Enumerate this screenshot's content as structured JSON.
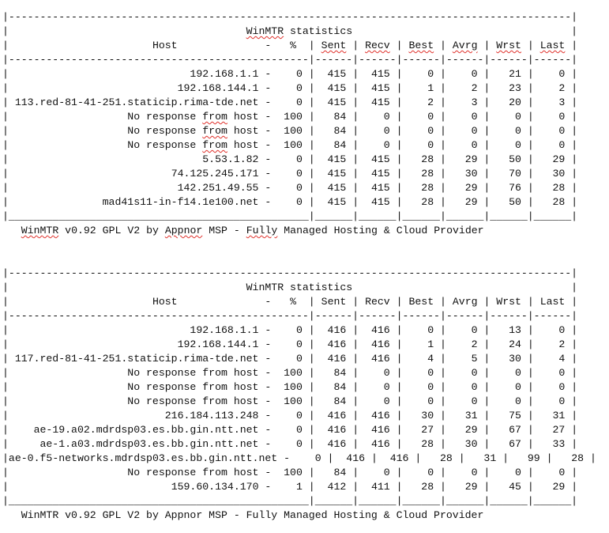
{
  "tables": [
    {
      "title": "WinMTR statistics",
      "headers": {
        "host": "Host",
        "dash": "-",
        "pct": "%",
        "cols": [
          "Sent",
          "Recv",
          "Best",
          "Avrg",
          "Wrst",
          "Last"
        ]
      },
      "rows": [
        {
          "host": "192.168.1.1",
          "pct": "0",
          "vals": [
            "415",
            "415",
            "0",
            "0",
            "21",
            "0"
          ]
        },
        {
          "host": "192.168.144.1",
          "pct": "0",
          "vals": [
            "415",
            "415",
            "1",
            "2",
            "23",
            "2"
          ]
        },
        {
          "host": "113.red-81-41-251.staticip.rima-tde.net",
          "pct": "0",
          "vals": [
            "415",
            "415",
            "2",
            "3",
            "20",
            "3"
          ]
        },
        {
          "host": "No response from host",
          "pct": "100",
          "vals": [
            "84",
            "0",
            "0",
            "0",
            "0",
            "0"
          ]
        },
        {
          "host": "No response from host",
          "pct": "100",
          "vals": [
            "84",
            "0",
            "0",
            "0",
            "0",
            "0"
          ]
        },
        {
          "host": "No response from host",
          "pct": "100",
          "vals": [
            "84",
            "0",
            "0",
            "0",
            "0",
            "0"
          ]
        },
        {
          "host": "5.53.1.82",
          "pct": "0",
          "vals": [
            "415",
            "415",
            "28",
            "29",
            "50",
            "29"
          ]
        },
        {
          "host": "74.125.245.171",
          "pct": "0",
          "vals": [
            "415",
            "415",
            "28",
            "30",
            "70",
            "30"
          ]
        },
        {
          "host": "142.251.49.55",
          "pct": "0",
          "vals": [
            "415",
            "415",
            "28",
            "29",
            "76",
            "28"
          ]
        },
        {
          "host": "mad41s11-in-f14.1e100.net",
          "pct": "0",
          "vals": [
            "415",
            "415",
            "28",
            "29",
            "50",
            "28"
          ]
        }
      ],
      "footer": "WinMTR v0.92 GPL V2 by Appnor MSP - Fully Managed Hosting & Cloud Provider",
      "spellcheck_flagged": [
        "WinMTR",
        "Sent",
        "Recv",
        "Best",
        "Avrg",
        "Wrst",
        "Last",
        "from",
        "Appnor",
        "Fully"
      ]
    },
    {
      "title": "WinMTR statistics",
      "headers": {
        "host": "Host",
        "dash": "-",
        "pct": "%",
        "cols": [
          "Sent",
          "Recv",
          "Best",
          "Avrg",
          "Wrst",
          "Last"
        ]
      },
      "rows": [
        {
          "host": "192.168.1.1",
          "pct": "0",
          "vals": [
            "416",
            "416",
            "0",
            "0",
            "13",
            "0"
          ]
        },
        {
          "host": "192.168.144.1",
          "pct": "0",
          "vals": [
            "416",
            "416",
            "1",
            "2",
            "24",
            "2"
          ]
        },
        {
          "host": "117.red-81-41-251.staticip.rima-tde.net",
          "pct": "0",
          "vals": [
            "416",
            "416",
            "4",
            "5",
            "30",
            "4"
          ]
        },
        {
          "host": "No response from host",
          "pct": "100",
          "vals": [
            "84",
            "0",
            "0",
            "0",
            "0",
            "0"
          ]
        },
        {
          "host": "No response from host",
          "pct": "100",
          "vals": [
            "84",
            "0",
            "0",
            "0",
            "0",
            "0"
          ]
        },
        {
          "host": "No response from host",
          "pct": "100",
          "vals": [
            "84",
            "0",
            "0",
            "0",
            "0",
            "0"
          ]
        },
        {
          "host": "216.184.113.248",
          "pct": "0",
          "vals": [
            "416",
            "416",
            "30",
            "31",
            "75",
            "31"
          ]
        },
        {
          "host": "ae-19.a02.mdrdsp03.es.bb.gin.ntt.net",
          "pct": "0",
          "vals": [
            "416",
            "416",
            "27",
            "29",
            "67",
            "27"
          ]
        },
        {
          "host": "ae-1.a03.mdrdsp03.es.bb.gin.ntt.net",
          "pct": "0",
          "vals": [
            "416",
            "416",
            "28",
            "30",
            "67",
            "33"
          ]
        },
        {
          "host": "ae-0.f5-networks.mdrdsp03.es.bb.gin.ntt.net",
          "pct": "0",
          "vals": [
            "416",
            "416",
            "28",
            "31",
            "99",
            "28"
          ]
        },
        {
          "host": "No response from host",
          "pct": "100",
          "vals": [
            "84",
            "0",
            "0",
            "0",
            "0",
            "0"
          ]
        },
        {
          "host": "159.60.134.170",
          "pct": "1",
          "vals": [
            "412",
            "411",
            "28",
            "29",
            "45",
            "29"
          ]
        }
      ],
      "footer": "WinMTR v0.92 GPL V2 by Appnor MSP - Fully Managed Hosting & Cloud Provider",
      "spellcheck_flagged": []
    }
  ]
}
